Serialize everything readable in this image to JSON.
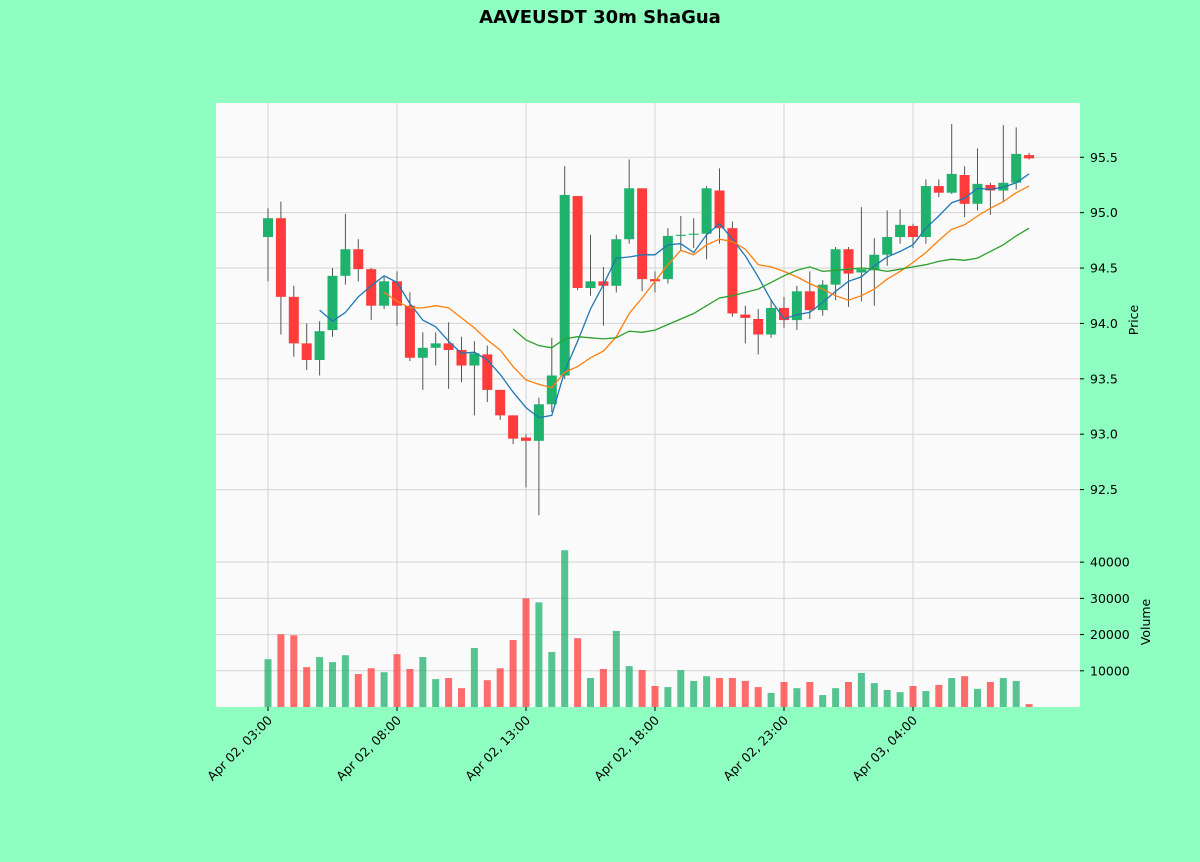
{
  "chart_data": {
    "type": "candlestick",
    "title": "AAVEUSDT 30m ShaGua",
    "ylabel": "Price",
    "categories": [
      "Apr 02, 03:00",
      null,
      null,
      null,
      null,
      null,
      null,
      null,
      null,
      null,
      "Apr 02, 08:00",
      null,
      null,
      null,
      null,
      null,
      null,
      null,
      null,
      null,
      "Apr 02, 13:00",
      null,
      null,
      null,
      null,
      null,
      null,
      null,
      null,
      null,
      "Apr 02, 18:00",
      null,
      null,
      null,
      null,
      null,
      null,
      null,
      null,
      null,
      "Apr 02, 23:00",
      null,
      null,
      null,
      null,
      null,
      null,
      null,
      null,
      null,
      "Apr 03, 04:00",
      null,
      null,
      null,
      null,
      null,
      null,
      null,
      null,
      null
    ],
    "open": [
      94.78,
      94.95,
      94.24,
      93.82,
      93.67,
      93.94,
      94.43,
      94.67,
      94.49,
      94.16,
      94.38,
      94.16,
      93.69,
      93.78,
      93.82,
      93.76,
      93.62,
      93.72,
      93.4,
      93.17,
      92.97,
      92.94,
      93.27,
      93.53,
      95.15,
      94.32,
      94.38,
      94.34,
      94.76,
      95.22,
      94.4,
      94.4,
      94.79,
      94.8,
      94.81,
      95.2,
      94.86,
      94.08,
      94.04,
      93.9,
      94.14,
      94.03,
      94.29,
      94.12,
      94.35,
      94.67,
      94.46,
      94.48,
      94.62,
      94.78,
      94.88,
      94.78,
      95.24,
      95.18,
      95.34,
      95.08,
      95.25,
      95.2,
      95.27,
      95.52
    ],
    "high": [
      95.04,
      95.1,
      94.34,
      94.0,
      94.02,
      94.5,
      94.99,
      94.76,
      94.5,
      94.42,
      94.47,
      94.28,
      93.92,
      93.92,
      94.01,
      93.88,
      93.84,
      93.8,
      93.4,
      93.17,
      93.0,
      93.33,
      93.87,
      95.42,
      95.15,
      94.8,
      94.51,
      94.8,
      95.48,
      95.22,
      94.47,
      94.86,
      94.97,
      94.95,
      95.24,
      95.4,
      94.92,
      94.16,
      94.13,
      94.22,
      94.24,
      94.34,
      94.47,
      94.39,
      94.69,
      94.69,
      95.05,
      94.77,
      95.02,
      95.03,
      94.9,
      95.3,
      95.3,
      95.8,
      95.42,
      95.58,
      95.27,
      95.79,
      95.77,
      95.54
    ],
    "low": [
      94.38,
      93.9,
      93.7,
      93.58,
      93.53,
      93.88,
      94.35,
      94.38,
      94.03,
      94.13,
      93.98,
      93.66,
      93.4,
      93.62,
      93.41,
      93.47,
      93.17,
      93.29,
      93.13,
      92.91,
      92.52,
      92.27,
      93.2,
      93.5,
      94.3,
      94.25,
      93.98,
      94.28,
      94.72,
      94.29,
      94.28,
      94.36,
      94.65,
      94.68,
      94.58,
      94.72,
      94.06,
      93.82,
      93.72,
      93.87,
      93.96,
      93.94,
      94.04,
      94.07,
      94.21,
      94.15,
      94.2,
      94.16,
      94.52,
      94.72,
      94.68,
      94.72,
      95.14,
      95.17,
      94.96,
      95.02,
      94.98,
      95.1,
      95.21,
      95.48
    ],
    "close": [
      94.95,
      94.24,
      93.82,
      93.67,
      93.93,
      94.43,
      94.67,
      94.49,
      94.16,
      94.38,
      94.16,
      93.69,
      93.78,
      93.82,
      93.76,
      93.62,
      93.73,
      93.4,
      93.17,
      92.96,
      92.94,
      93.27,
      93.53,
      95.16,
      94.32,
      94.38,
      94.34,
      94.76,
      95.22,
      94.4,
      94.38,
      94.79,
      94.8,
      94.81,
      95.22,
      94.86,
      94.09,
      94.05,
      93.9,
      94.14,
      94.03,
      94.29,
      94.12,
      94.35,
      94.67,
      94.45,
      94.49,
      94.62,
      94.78,
      94.89,
      94.78,
      95.24,
      95.18,
      95.35,
      95.08,
      95.26,
      95.2,
      95.27,
      95.53,
      95.49
    ],
    "up_color": "#1fb26c",
    "down_color": "#ff3b3b",
    "wick_color": "#555555",
    "ylim": [
      92.09,
      95.99
    ],
    "yticks": [
      {
        "value": 92.5,
        "label": "92.5"
      },
      {
        "value": 93,
        "label": "93.0"
      },
      {
        "value": 93.5,
        "label": "93.5"
      },
      {
        "value": 94,
        "label": "94.0"
      },
      {
        "value": 94.5,
        "label": "94.5"
      },
      {
        "value": 95,
        "label": "95.0"
      },
      {
        "value": 95.5,
        "label": "95.5"
      }
    ],
    "grid": true,
    "series": [
      {
        "color": "#1f77b4",
        "values": [
          null,
          null,
          null,
          null,
          94.12,
          94.02,
          94.1,
          94.24,
          94.34,
          94.43,
          94.37,
          94.18,
          94.03,
          93.97,
          93.84,
          93.73,
          93.74,
          93.67,
          93.54,
          93.38,
          93.24,
          93.15,
          93.17,
          93.57,
          93.84,
          94.13,
          94.35,
          94.59,
          94.6,
          94.62,
          94.62,
          94.71,
          94.72,
          94.64,
          94.8,
          94.9,
          94.76,
          94.61,
          94.42,
          94.21,
          94.04,
          94.08,
          94.1,
          94.19,
          94.29,
          94.38,
          94.42,
          94.52,
          94.6,
          94.65,
          94.71,
          94.86,
          94.97,
          95.09,
          95.13,
          95.22,
          95.21,
          95.23,
          95.27,
          95.35
        ]
      },
      {
        "color": "#ff7f0e",
        "values": [
          null,
          null,
          null,
          null,
          null,
          null,
          null,
          null,
          null,
          94.28,
          94.2,
          94.14,
          94.14,
          94.16,
          94.14,
          94.05,
          93.96,
          93.85,
          93.76,
          93.61,
          93.49,
          93.45,
          93.42,
          93.56,
          93.61,
          93.69,
          93.75,
          93.88,
          94.09,
          94.23,
          94.38,
          94.53,
          94.66,
          94.62,
          94.71,
          94.76,
          94.74,
          94.67,
          94.53,
          94.51,
          94.47,
          94.42,
          94.36,
          94.31,
          94.25,
          94.21,
          94.25,
          94.31,
          94.4,
          94.47,
          94.55,
          94.64,
          94.75,
          94.85,
          94.89,
          94.97,
          95.04,
          95.1,
          95.18,
          95.24
        ]
      },
      {
        "color": "#2ca02c",
        "values": [
          null,
          null,
          null,
          null,
          null,
          null,
          null,
          null,
          null,
          null,
          null,
          null,
          null,
          null,
          null,
          null,
          null,
          null,
          null,
          93.95,
          93.85,
          93.8,
          93.78,
          93.86,
          93.88,
          93.87,
          93.86,
          93.87,
          93.93,
          93.92,
          93.94,
          93.99,
          94.04,
          94.09,
          94.16,
          94.23,
          94.25,
          94.28,
          94.31,
          94.37,
          94.43,
          94.48,
          94.51,
          94.47,
          94.48,
          94.49,
          94.5,
          94.49,
          94.47,
          94.49,
          94.51,
          94.53,
          94.56,
          94.58,
          94.57,
          94.59,
          94.65,
          94.71,
          94.79,
          94.86
        ]
      }
    ],
    "volume": {
      "ylabel": "Volume",
      "values": [
        13200,
        20100,
        19800,
        11000,
        13800,
        12400,
        14300,
        9100,
        10700,
        9600,
        14600,
        10500,
        13800,
        7700,
        8000,
        5200,
        16300,
        7400,
        10700,
        18500,
        30000,
        28900,
        15200,
        43300,
        19000,
        8000,
        10500,
        21000,
        11300,
        10200,
        5800,
        5500,
        10200,
        7200,
        8500,
        8000,
        8000,
        7200,
        5500,
        3900,
        6900,
        5200,
        6900,
        3300,
        5200,
        6900,
        9400,
        6600,
        4700,
        4100,
        5800,
        4400,
        6100,
        8000,
        8500,
        5000,
        6900,
        8000,
        7200,
        800
      ],
      "ylim": [
        0,
        47500
      ],
      "yticks": [
        10000,
        20000,
        30000,
        40000
      ]
    }
  }
}
